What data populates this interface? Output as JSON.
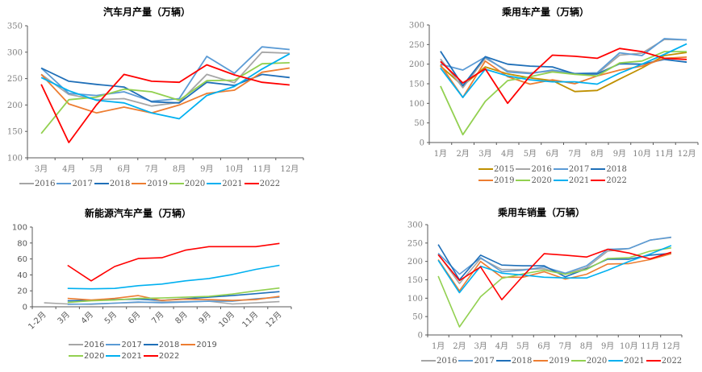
{
  "chart_data": [
    {
      "id": "auto-monthly-production",
      "type": "line",
      "title": "汽车月产量（万辆）",
      "xlabel": "",
      "ylabel": "",
      "ylim": [
        100,
        350
      ],
      "yticks": [
        100,
        150,
        200,
        250,
        300,
        350
      ],
      "grid": false,
      "legend": "bottom",
      "categories": [
        "3月",
        "4月",
        "5月",
        "6月",
        "7月",
        "8月",
        "9月",
        "10月",
        "11月",
        "12月"
      ],
      "series": [
        {
          "name": "2016",
          "color": "#a6a6a6",
          "values": [
            258,
            220,
            210,
            212,
            198,
            205,
            258,
            242,
            300,
            298
          ]
        },
        {
          "name": "2017",
          "color": "#5b9bd5",
          "values": [
            270,
            222,
            218,
            225,
            207,
            212,
            292,
            260,
            310,
            305
          ]
        },
        {
          "name": "2018",
          "color": "#1f6fb8",
          "values": [
            270,
            245,
            239,
            234,
            206,
            204,
            243,
            237,
            258,
            252
          ]
        },
        {
          "name": "2019",
          "color": "#ed7d31",
          "values": [
            258,
            202,
            185,
            196,
            185,
            200,
            222,
            228,
            262,
            270
          ]
        },
        {
          "name": "2020",
          "color": "#92d050",
          "values": [
            146,
            210,
            215,
            230,
            225,
            209,
            246,
            247,
            278,
            280
          ]
        },
        {
          "name": "2021",
          "color": "#00b0f0",
          "values": [
            252,
            227,
            209,
            204,
            185,
            174,
            218,
            235,
            268,
            297
          ]
        },
        {
          "name": "2022",
          "color": "#ff0000",
          "values": [
            239,
            129,
            200,
            258,
            245,
            243,
            276,
            257,
            243,
            238
          ]
        }
      ]
    },
    {
      "id": "passenger-car-production",
      "type": "line",
      "title": "乘用车产量（万辆）",
      "xlabel": "",
      "ylabel": "",
      "ylim": [
        0,
        300
      ],
      "yticks": [
        0,
        50,
        100,
        150,
        200,
        250,
        300
      ],
      "grid": false,
      "legend": "bottom",
      "categories": [
        "1月",
        "2月",
        "3月",
        "4月",
        "5月",
        "6月",
        "7月",
        "8月",
        "9月",
        "10月",
        "11月",
        "12月"
      ],
      "series": [
        {
          "name": "2015",
          "color": "#bf9000",
          "values": [
            195,
            145,
            193,
            175,
            165,
            158,
            130,
            133,
            162,
            190,
            222,
            230
          ]
        },
        {
          "name": "2016",
          "color": "#a6a6a6",
          "values": [
            213,
            140,
            215,
            183,
            178,
            182,
            175,
            175,
            223,
            228,
            263,
            262
          ]
        },
        {
          "name": "2017",
          "color": "#5b9bd5",
          "values": [
            200,
            185,
            218,
            180,
            176,
            185,
            176,
            178,
            229,
            222,
            265,
            262
          ]
        },
        {
          "name": "2018",
          "color": "#1f6fb8",
          "values": [
            233,
            145,
            219,
            200,
            195,
            193,
            175,
            175,
            201,
            200,
            212,
            205
          ]
        },
        {
          "name": "2019",
          "color": "#ed7d31",
          "values": [
            198,
            115,
            208,
            168,
            149,
            160,
            150,
            170,
            185,
            195,
            215,
            218
          ]
        },
        {
          "name": "2020",
          "color": "#92d050",
          "values": [
            144,
            20,
            105,
            158,
            168,
            180,
            174,
            170,
            203,
            208,
            232,
            232
          ]
        },
        {
          "name": "2021",
          "color": "#00b0f0",
          "values": [
            190,
            115,
            187,
            170,
            160,
            155,
            155,
            149,
            177,
            200,
            225,
            252
          ]
        },
        {
          "name": "2022",
          "color": "#ff0000",
          "values": [
            207,
            152,
            188,
            100,
            170,
            223,
            220,
            215,
            240,
            232,
            215,
            212
          ]
        }
      ]
    },
    {
      "id": "nev-production",
      "type": "line",
      "title": "新能源汽车产量（万辆）",
      "xlabel": "",
      "ylabel": "",
      "ylim": [
        0,
        100
      ],
      "yticks": [
        0,
        20,
        40,
        60,
        80,
        100
      ],
      "grid": false,
      "legend": "bottom",
      "categories": [
        "1-2月",
        "3月",
        "4月",
        "5月",
        "6月",
        "7月",
        "8月",
        "9月",
        "10月",
        "11月",
        "12月"
      ],
      "series": [
        {
          "name": "2016",
          "color": "#a6a6a6",
          "values": [
            5,
            3.5,
            3,
            4.5,
            5.5,
            6,
            6.5,
            7,
            3.5,
            5,
            6.5
          ]
        },
        {
          "name": "2017",
          "color": "#5b9bd5",
          "values": [
            null,
            3,
            3.5,
            4.5,
            6,
            5,
            6,
            7,
            7,
            10,
            12
          ]
        },
        {
          "name": "2018",
          "color": "#1f6fb8",
          "values": [
            null,
            7.5,
            8,
            9,
            9.5,
            8,
            10,
            12,
            14,
            16.5,
            19
          ]
        },
        {
          "name": "2019",
          "color": "#ed7d31",
          "values": [
            null,
            10.5,
            8.5,
            10.5,
            14,
            8,
            9.5,
            9,
            8,
            9,
            13
          ]
        },
        {
          "name": "2020",
          "color": "#92d050",
          "values": [
            null,
            5.5,
            7.5,
            8.5,
            10.5,
            11,
            12,
            13,
            16,
            20,
            23.5
          ]
        },
        {
          "name": "2021",
          "color": "#00b0f0",
          "values": [
            null,
            23,
            22.5,
            23,
            26.5,
            28.5,
            32.5,
            35.5,
            40.5,
            47,
            52
          ]
        },
        {
          "name": "2022",
          "color": "#ff0000",
          "values": [
            null,
            52,
            32.5,
            50.5,
            60.5,
            61.5,
            71,
            75.5,
            75.5,
            75.5,
            79.5
          ]
        }
      ]
    },
    {
      "id": "passenger-car-sales",
      "type": "line",
      "title": "乘用车销量（万辆）",
      "xlabel": "",
      "ylabel": "",
      "ylim": [
        0,
        300
      ],
      "yticks": [
        0,
        50,
        100,
        150,
        200,
        250,
        300
      ],
      "grid": false,
      "legend": "bottom",
      "categories": [
        "1月",
        "2月",
        "3月",
        "4月",
        "5月",
        "6月",
        "7月",
        "8月",
        "9月",
        "10月",
        "11月",
        "12月"
      ],
      "series": [
        {
          "name": "2016",
          "color": "#a6a6a6",
          "values": [
            220,
            140,
            208,
            178,
            178,
            180,
            165,
            183,
            228,
            235,
            258,
            265
          ]
        },
        {
          "name": "2017",
          "color": "#5b9bd5",
          "values": [
            222,
            165,
            210,
            172,
            176,
            185,
            168,
            188,
            233,
            235,
            258,
            266
          ]
        },
        {
          "name": "2018",
          "color": "#1f6fb8",
          "values": [
            246,
            150,
            217,
            190,
            188,
            188,
            158,
            180,
            206,
            206,
            217,
            222
          ]
        },
        {
          "name": "2019",
          "color": "#ed7d31",
          "values": [
            205,
            120,
            200,
            157,
            157,
            172,
            152,
            165,
            193,
            194,
            205,
            221
          ]
        },
        {
          "name": "2020",
          "color": "#92d050",
          "values": [
            160,
            22,
            104,
            154,
            166,
            176,
            165,
            178,
            208,
            210,
            228,
            237
          ]
        },
        {
          "name": "2021",
          "color": "#00b0f0",
          "values": [
            203,
            115,
            187,
            168,
            163,
            157,
            155,
            155,
            176,
            200,
            220,
            243
          ]
        },
        {
          "name": "2022",
          "color": "#ff0000",
          "values": [
            218,
            148,
            185,
            96,
            160,
            221,
            217,
            212,
            233,
            223,
            207,
            225
          ]
        }
      ]
    }
  ]
}
